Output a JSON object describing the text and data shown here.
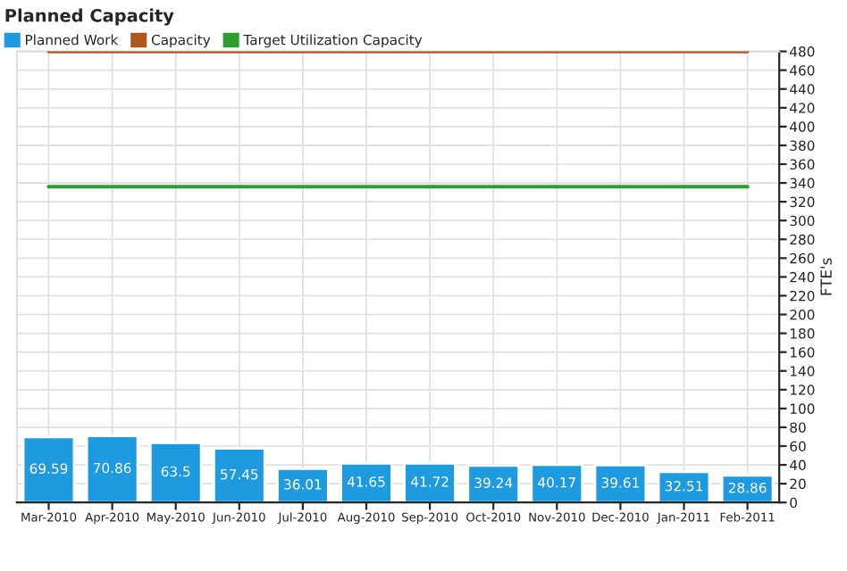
{
  "chart_data": {
    "type": "bar",
    "title": "Planned Capacity",
    "ylabel": "FTE's",
    "categories": [
      "Mar-2010",
      "Apr-2010",
      "May-2010",
      "Jun-2010",
      "Jul-2010",
      "Aug-2010",
      "Sep-2010",
      "Oct-2010",
      "Nov-2010",
      "Dec-2010",
      "Jan-2011",
      "Feb-2011"
    ],
    "series": [
      {
        "name": "Planned Work",
        "color": "#1e9be0",
        "values": [
          69.59,
          70.86,
          63.5,
          57.45,
          36.01,
          41.65,
          41.72,
          39.24,
          40.17,
          39.61,
          32.51,
          28.86
        ],
        "value_labels": [
          "69.59",
          "70.86",
          "63.5",
          "57.45",
          "36.01",
          "41.65",
          "41.72",
          "39.24",
          "40.17",
          "39.61",
          "32.51",
          "28.86"
        ]
      },
      {
        "name": "Capacity",
        "type": "line",
        "color": "#b0561a",
        "values": [
          480,
          480,
          480,
          480,
          480,
          480,
          480,
          480,
          480,
          480,
          480,
          480
        ]
      },
      {
        "name": "Target Utilization Capacity",
        "type": "line",
        "color": "#2e9e32",
        "values": [
          336,
          336,
          336,
          336,
          336,
          336,
          336,
          336,
          336,
          336,
          336,
          336
        ]
      }
    ],
    "ylim": [
      0,
      480
    ],
    "yticks": [
      0,
      20,
      40,
      60,
      80,
      100,
      120,
      140,
      160,
      180,
      200,
      220,
      240,
      260,
      280,
      300,
      320,
      340,
      360,
      380,
      400,
      420,
      440,
      460,
      480
    ],
    "grid": true,
    "legend": "top left",
    "marker": "none",
    "line_style": "solid"
  }
}
